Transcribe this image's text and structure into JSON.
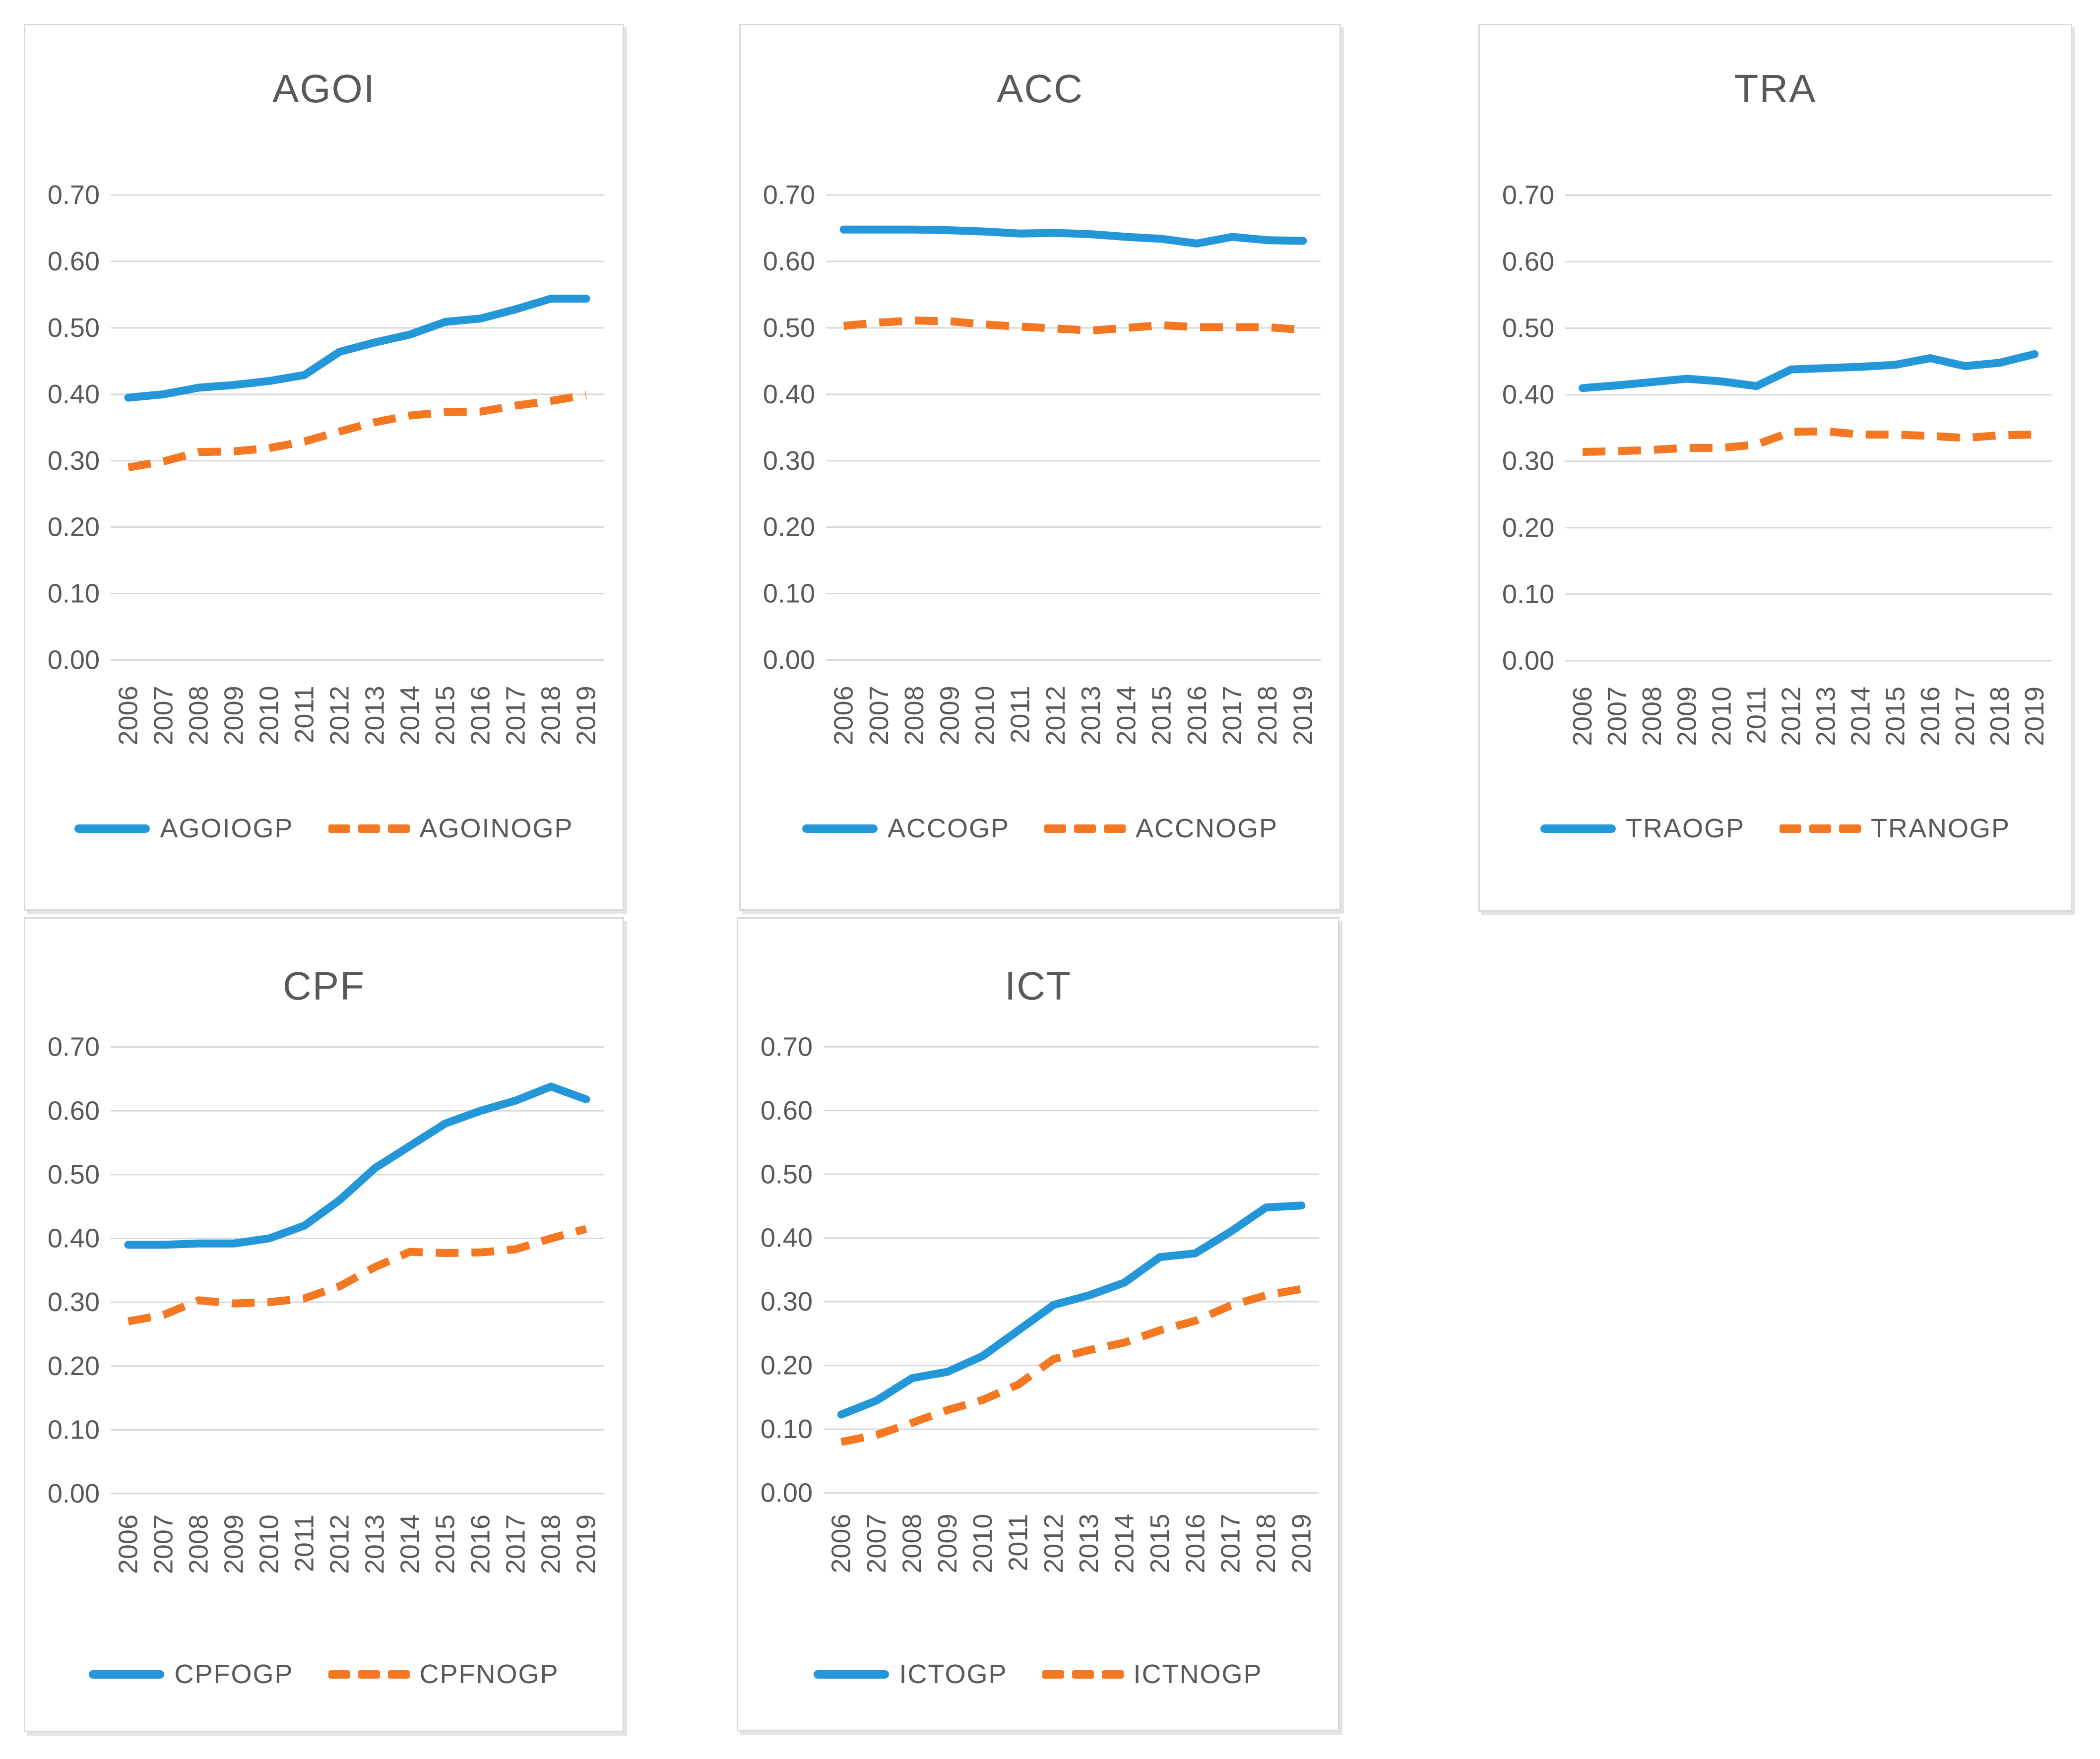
{
  "colors": {
    "ogp_line": "#2397D8",
    "nogp_line": "#F47721",
    "gridline": "#D9D9D9",
    "text": "#595959",
    "panel_border": "#D9D9D9"
  },
  "axis": {
    "y_tick_labels": [
      "0.70",
      "0.60",
      "0.50",
      "0.40",
      "0.30",
      "0.20",
      "0.10",
      "0.00"
    ],
    "y_ticks": [
      0.7,
      0.6,
      0.5,
      0.4,
      0.3,
      0.2,
      0.1,
      0.0
    ],
    "x_label_rotation_degrees": 90
  },
  "chart_data": [
    {
      "type": "line",
      "title": "AGOI",
      "ylim": [
        0,
        0.7
      ],
      "grid": true,
      "legend_position": "bottom",
      "categories": [
        "2006",
        "2007",
        "2008",
        "2009",
        "2010",
        "2011",
        "2012",
        "2013",
        "2014",
        "2015",
        "2016",
        "2017",
        "2018",
        "2019"
      ],
      "series": [
        {
          "name": "AGOIOGP",
          "style": "solid",
          "color": "#2397D8",
          "values": [
            0.395,
            0.4,
            0.41,
            0.414,
            0.42,
            0.429,
            0.464,
            0.478,
            0.49,
            0.509,
            0.514,
            0.528,
            0.544,
            0.544
          ]
        },
        {
          "name": "AGOINOGP",
          "style": "dashed",
          "color": "#F47721",
          "values": [
            0.29,
            0.299,
            0.313,
            0.314,
            0.319,
            0.329,
            0.344,
            0.358,
            0.368,
            0.373,
            0.374,
            0.383,
            0.39,
            0.399
          ]
        }
      ]
    },
    {
      "type": "line",
      "title": "ACC",
      "ylim": [
        0,
        0.7
      ],
      "grid": true,
      "legend_position": "bottom",
      "categories": [
        "2006",
        "2007",
        "2008",
        "2009",
        "2010",
        "2011",
        "2012",
        "2013",
        "2014",
        "2015",
        "2016",
        "2017",
        "2018",
        "2019"
      ],
      "series": [
        {
          "name": "ACCOGP",
          "style": "solid",
          "color": "#2397D8",
          "values": [
            0.648,
            0.648,
            0.648,
            0.647,
            0.645,
            0.642,
            0.643,
            0.641,
            0.637,
            0.634,
            0.627,
            0.637,
            0.632,
            0.631
          ]
        },
        {
          "name": "ACCNOGP",
          "style": "dashed",
          "color": "#F47721",
          "values": [
            0.503,
            0.508,
            0.511,
            0.51,
            0.505,
            0.502,
            0.499,
            0.496,
            0.5,
            0.504,
            0.501,
            0.501,
            0.501,
            0.497
          ]
        }
      ]
    },
    {
      "type": "line",
      "title": "TRA",
      "ylim": [
        0,
        0.7
      ],
      "grid": true,
      "legend_position": "bottom",
      "categories": [
        "2006",
        "2007",
        "2008",
        "2009",
        "2010",
        "2011",
        "2012",
        "2013",
        "2014",
        "2015",
        "2016",
        "2017",
        "2018",
        "2019"
      ],
      "series": [
        {
          "name": "TRAOGP",
          "style": "solid",
          "color": "#2397D8",
          "values": [
            0.41,
            0.414,
            0.419,
            0.424,
            0.42,
            0.413,
            0.438,
            0.44,
            0.442,
            0.445,
            0.455,
            0.443,
            0.448,
            0.461
          ]
        },
        {
          "name": "TRANOGP",
          "style": "dashed",
          "color": "#F47721",
          "values": [
            0.314,
            0.315,
            0.317,
            0.32,
            0.32,
            0.325,
            0.344,
            0.345,
            0.34,
            0.34,
            0.338,
            0.335,
            0.339,
            0.34
          ]
        }
      ]
    },
    {
      "type": "line",
      "title": "CPF",
      "ylim": [
        0,
        0.7
      ],
      "grid": true,
      "legend_position": "bottom",
      "categories": [
        "2006",
        "2007",
        "2008",
        "2009",
        "2010",
        "2011",
        "2012",
        "2013",
        "2014",
        "2015",
        "2016",
        "2017",
        "2018",
        "2019"
      ],
      "series": [
        {
          "name": "CPFOGP",
          "style": "solid",
          "color": "#2397D8",
          "values": [
            0.39,
            0.39,
            0.392,
            0.392,
            0.4,
            0.42,
            0.46,
            0.51,
            0.545,
            0.58,
            0.6,
            0.616,
            0.638,
            0.618
          ]
        },
        {
          "name": "CPFNOGP",
          "style": "dashed",
          "color": "#F47721",
          "values": [
            0.27,
            0.28,
            0.303,
            0.298,
            0.3,
            0.306,
            0.325,
            0.355,
            0.379,
            0.377,
            0.378,
            0.383,
            0.4,
            0.415
          ]
        }
      ]
    },
    {
      "type": "line",
      "title": "ICT",
      "ylim": [
        0,
        0.7
      ],
      "grid": true,
      "legend_position": "bottom",
      "categories": [
        "2006",
        "2007",
        "2008",
        "2009",
        "2010",
        "2011",
        "2012",
        "2013",
        "2014",
        "2015",
        "2016",
        "2017",
        "2018",
        "2019"
      ],
      "series": [
        {
          "name": "ICTOGP",
          "style": "solid",
          "color": "#2397D8",
          "values": [
            0.123,
            0.145,
            0.18,
            0.19,
            0.215,
            0.255,
            0.295,
            0.31,
            0.33,
            0.37,
            0.376,
            0.41,
            0.448,
            0.451
          ]
        },
        {
          "name": "ICTNOGP",
          "style": "dashed",
          "color": "#F47721",
          "values": [
            0.08,
            0.091,
            0.11,
            0.13,
            0.146,
            0.17,
            0.21,
            0.224,
            0.236,
            0.255,
            0.27,
            0.294,
            0.31,
            0.32
          ]
        }
      ]
    }
  ]
}
